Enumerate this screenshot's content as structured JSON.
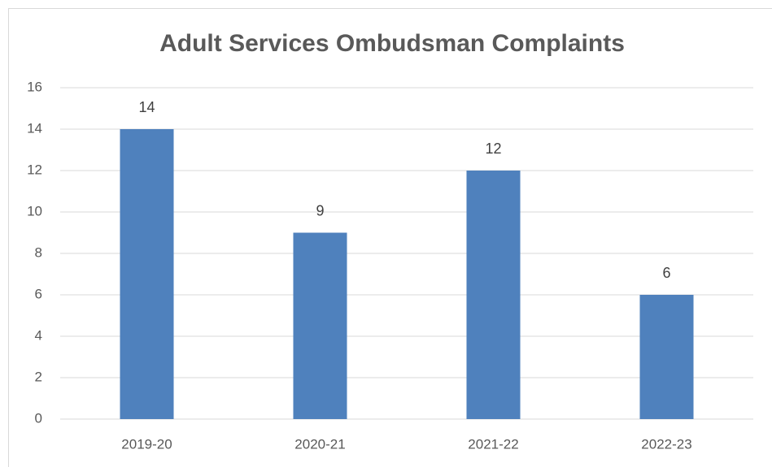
{
  "chart_data": {
    "type": "bar",
    "title": "Adult Services Ombudsman Complaints",
    "categories": [
      "2019-20",
      "2020-21",
      "2021-22",
      "2022-23"
    ],
    "values": [
      14,
      9,
      12,
      6
    ],
    "color": "#4f81bd",
    "ylim": [
      0,
      16
    ],
    "yticks": [
      0,
      2,
      4,
      6,
      8,
      10,
      12,
      14,
      16
    ],
    "grid": true
  }
}
